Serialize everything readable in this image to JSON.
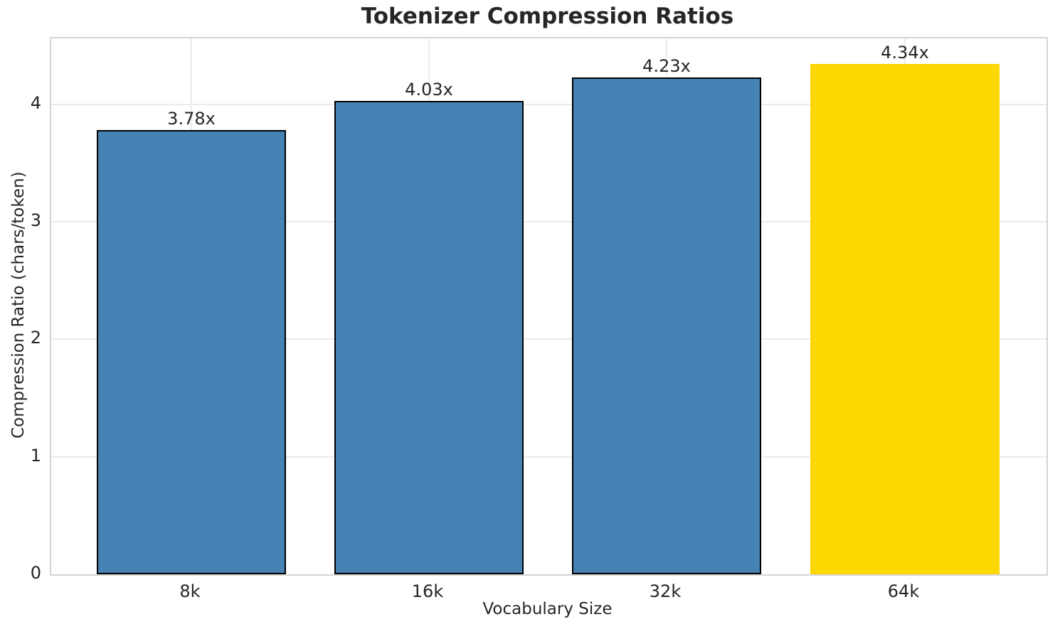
{
  "chart_data": {
    "type": "bar",
    "title": "Tokenizer Compression Ratios",
    "xlabel": "Vocabulary Size",
    "ylabel": "Compression Ratio (chars/token)",
    "categories": [
      "8k",
      "16k",
      "32k",
      "64k"
    ],
    "values": [
      3.78,
      4.03,
      4.23,
      4.34
    ],
    "bar_labels": [
      "3.78x",
      "4.03x",
      "4.23x",
      "4.34x"
    ],
    "bar_colors": [
      "#4682B4",
      "#4682B4",
      "#4682B4",
      "#FFD700"
    ],
    "bar_edge_colors": [
      "#000000",
      "#000000",
      "#000000",
      "none"
    ],
    "yticks": [
      0,
      1,
      2,
      3,
      4
    ],
    "ylim": [
      0,
      4.56
    ],
    "grid": true,
    "legend_position": "none",
    "highlighted_category": "64k",
    "colors": {
      "bar": "#4682B4",
      "highlight": "#FFD700",
      "bar_edge": "#000000",
      "text": "#262626",
      "grid": "#ebebeb",
      "spine": "#d4d4d4",
      "background": "#ffffff"
    }
  }
}
